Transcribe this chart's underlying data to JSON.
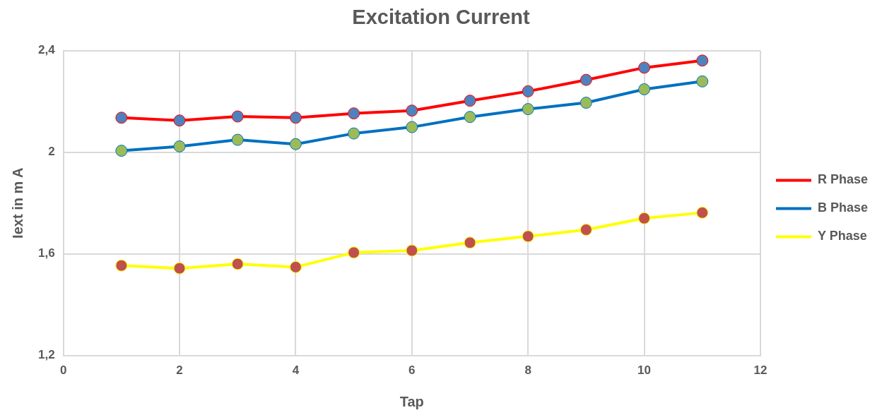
{
  "chart_data": {
    "type": "line",
    "title": "Excitation Current",
    "xlabel": "Tap",
    "ylabel": "Iext in m A",
    "x": [
      1,
      2,
      3,
      4,
      5,
      6,
      7,
      8,
      9,
      10,
      11
    ],
    "series": [
      {
        "name": "R Phase",
        "color": "#ff0000",
        "colors": [
          "#4f81bd",
          "#4f81bd",
          "#4f81bd",
          "#4f81bd",
          "#4f81bd",
          "#4f81bd",
          "#4f81bd",
          "#4f81bd",
          "#4f81bd",
          "#4f81bd",
          "#4f81bd"
        ],
        "values": [
          2.136,
          2.125,
          2.141,
          2.136,
          2.153,
          2.164,
          2.203,
          2.24,
          2.285,
          2.333,
          2.361
        ]
      },
      {
        "name": "B Phase",
        "color": "#0070c0",
        "colors": [
          "#9bbb59",
          "#9bbb59",
          "#9bbb59",
          "#9bbb59",
          "#9bbb59",
          "#9bbb59",
          "#9bbb59",
          "#9bbb59",
          "#9bbb59",
          "#9bbb59",
          "#9bbb59"
        ],
        "values": [
          2.006,
          2.023,
          2.049,
          2.032,
          2.074,
          2.099,
          2.139,
          2.17,
          2.195,
          2.248,
          2.279
        ]
      },
      {
        "name": "Y Phase",
        "color": "#ffff00",
        "colors": [
          "#c0504d",
          "#c0504d",
          "#c0504d",
          "#c0504d",
          "#c0504d",
          "#c0504d",
          "#c0504d",
          "#c0504d",
          "#c0504d",
          "#c0504d",
          "#c0504d"
        ],
        "values": [
          1.554,
          1.543,
          1.56,
          1.548,
          1.605,
          1.613,
          1.644,
          1.669,
          1.695,
          1.74,
          1.762
        ]
      }
    ],
    "xlim": [
      0,
      12
    ],
    "xticks": [
      0,
      2,
      4,
      6,
      8,
      10,
      12
    ],
    "ylim": [
      1.2,
      2.4
    ],
    "yticks": [
      {
        "value": 1.2,
        "label": "1,2"
      },
      {
        "value": 1.6,
        "label": "1,6"
      },
      {
        "value": 2,
        "label": "2"
      },
      {
        "value": 2.4,
        "label": "2,4"
      }
    ],
    "grid": true,
    "legend": "right",
    "marker": "circle",
    "line_style": "solid"
  }
}
